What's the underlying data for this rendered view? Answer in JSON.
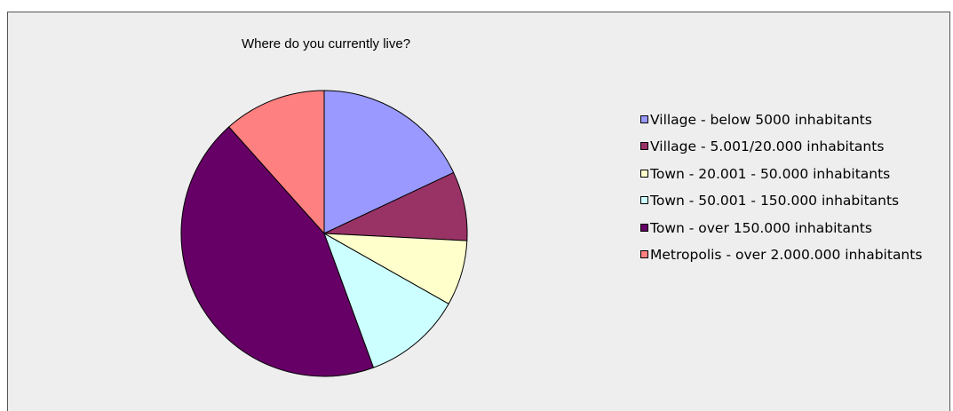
{
  "chart_data": {
    "type": "pie",
    "title": "Where do you currently live?",
    "legend_position": "right",
    "slices": [
      {
        "label": "Village - below 5000 inhabitants",
        "value": 18.0,
        "color": "#9999ff"
      },
      {
        "label": "Village - 5.001/20.000 inhabitants",
        "value": 7.8,
        "color": "#993366"
      },
      {
        "label": "Town - 20.001 - 50.000 inhabitants",
        "value": 7.4,
        "color": "#ffffcc"
      },
      {
        "label": "Town - 50.001 - 150.000 inhabitants",
        "value": 11.2,
        "color": "#ccffff"
      },
      {
        "label": "Town - over 150.000 inhabitants",
        "value": 44.0,
        "color": "#660066"
      },
      {
        "label": "Metropolis - over 2.000.000 inhabitants",
        "value": 11.6,
        "color": "#ff8080"
      }
    ]
  }
}
